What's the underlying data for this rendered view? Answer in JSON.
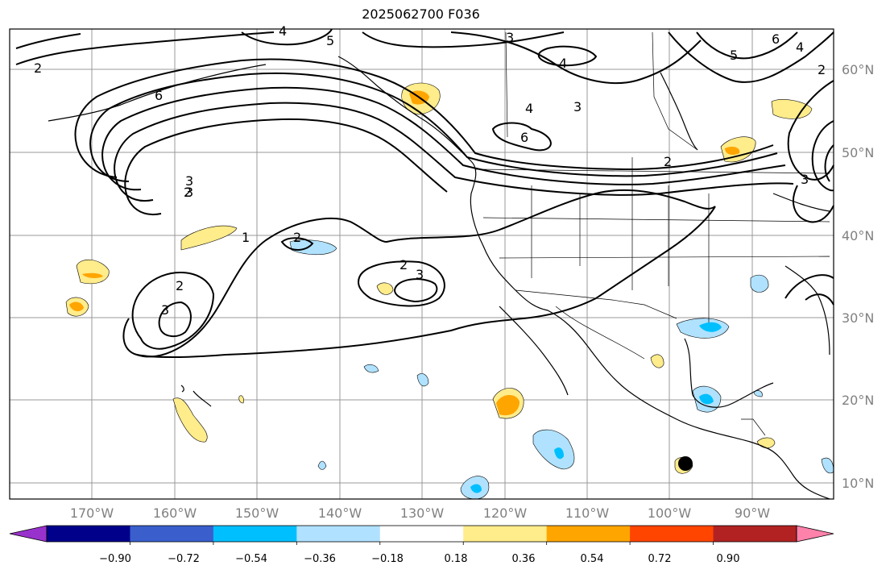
{
  "title": "2025062700 F036",
  "map": {
    "latitude_labels": [
      "60°N",
      "50°N",
      "40°N",
      "30°N",
      "20°N",
      "10°N"
    ],
    "longitude_labels": [
      "170°W",
      "160°W",
      "150°W",
      "140°W",
      "130°W",
      "120°W",
      "110°W",
      "100°W",
      "90°W"
    ],
    "contour_labels": [
      "2",
      "4",
      "5",
      "3",
      "6",
      "4",
      "3",
      "4",
      "6",
      "5",
      "4",
      "2",
      "6",
      "2",
      "3",
      "3",
      "2",
      "3",
      "1",
      "2",
      "2",
      "3",
      "2",
      "3"
    ],
    "marker": "storm-center-dot"
  },
  "colorbar": {
    "ticks": [
      "−0.90",
      "−0.72",
      "−0.54",
      "−0.36",
      "−0.18",
      "0.18",
      "0.36",
      "0.54",
      "0.72",
      "0.90"
    ],
    "colors": [
      "#9932cc",
      "#00008b",
      "#3a5fcd",
      "#00bfff",
      "#b0e2ff",
      "#ffffff",
      "#ffec8b",
      "#ffa500",
      "#ff4500",
      "#b22222",
      "#ff82ab"
    ]
  }
}
